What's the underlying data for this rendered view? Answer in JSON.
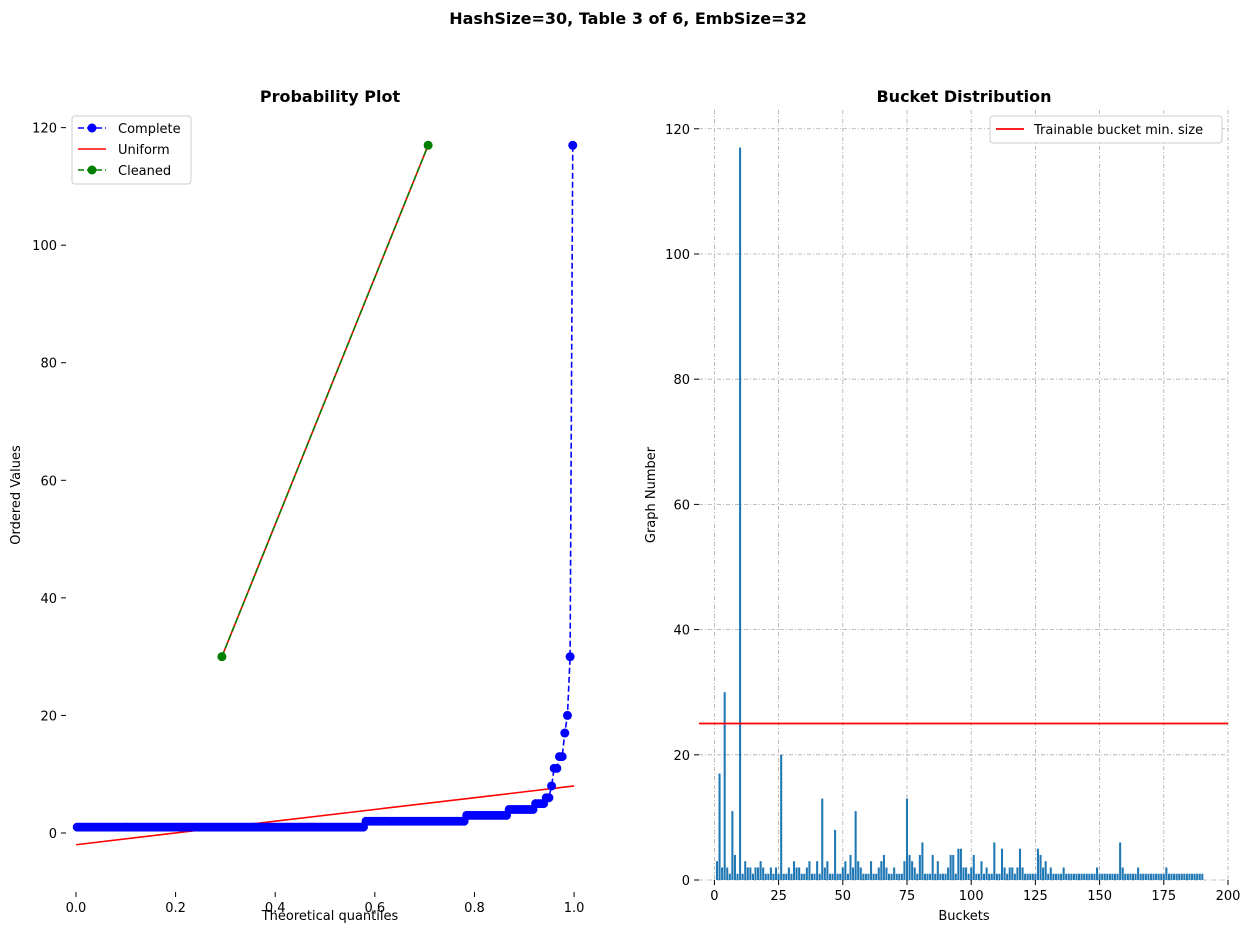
{
  "suptitle": "HashSize=30, Table 3 of 6, EmbSize=32",
  "chart_data": [
    {
      "type": "line",
      "title": "Probability Plot",
      "xlabel": "Theoretical quantiles",
      "ylabel": "Ordered Values",
      "xlim": [
        -0.02,
        1.04
      ],
      "ylim": [
        -8,
        123
      ],
      "xticks": [
        0.0,
        0.2,
        0.4,
        0.6,
        0.8,
        1.0
      ],
      "xtick_labels": [
        "0.0",
        "0.2",
        "0.4",
        "0.6",
        "0.8",
        "1.0"
      ],
      "yticks": [
        0,
        20,
        40,
        60,
        80,
        100,
        120
      ],
      "ytick_labels": [
        "0",
        "20",
        "40",
        "60",
        "80",
        "100",
        "120"
      ],
      "grid": false,
      "legend_position": "top-left",
      "legend": [
        "Complete",
        "Uniform",
        "Cleaned"
      ],
      "series": [
        {
          "name": "Complete",
          "style": "dashed-markers",
          "color": "#0000ff",
          "sorted_values": [
            1,
            1,
            1,
            1,
            1,
            1,
            1,
            1,
            1,
            1,
            1,
            1,
            1,
            1,
            1,
            1,
            1,
            1,
            1,
            1,
            1,
            1,
            1,
            1,
            1,
            1,
            1,
            1,
            1,
            1,
            1,
            1,
            1,
            1,
            1,
            1,
            1,
            1,
            1,
            1,
            1,
            1,
            1,
            1,
            1,
            1,
            1,
            1,
            1,
            1,
            1,
            1,
            1,
            1,
            1,
            1,
            1,
            1,
            1,
            1,
            1,
            1,
            1,
            1,
            1,
            1,
            1,
            1,
            1,
            1,
            1,
            1,
            1,
            1,
            1,
            1,
            1,
            1,
            1,
            1,
            1,
            1,
            1,
            1,
            1,
            1,
            1,
            1,
            1,
            1,
            1,
            1,
            1,
            1,
            1,
            1,
            1,
            1,
            1,
            1,
            1,
            1,
            1,
            1,
            1,
            1,
            1,
            1,
            1,
            2,
            2,
            2,
            2,
            2,
            2,
            2,
            2,
            2,
            2,
            2,
            2,
            2,
            2,
            2,
            2,
            2,
            2,
            2,
            2,
            2,
            2,
            2,
            2,
            2,
            2,
            2,
            2,
            2,
            2,
            2,
            2,
            2,
            2,
            2,
            2,
            2,
            2,
            3,
            3,
            3,
            3,
            3,
            3,
            3,
            3,
            3,
            3,
            3,
            3,
            3,
            3,
            3,
            3,
            4,
            4,
            4,
            4,
            4,
            4,
            4,
            4,
            4,
            4,
            5,
            5,
            5,
            5,
            6,
            6,
            8,
            11,
            11,
            13,
            13,
            17,
            20,
            30,
            117
          ]
        },
        {
          "name": "Uniform",
          "style": "solid",
          "color": "#ff0000",
          "segments": [
            {
              "x": [
                0.0,
                1.0
              ],
              "y": [
                -2.0,
                8.0
              ]
            },
            {
              "x": [
                0.293,
                0.707
              ],
              "y": [
                30.0,
                117.0
              ]
            }
          ]
        },
        {
          "name": "Cleaned",
          "style": "dashed-markers",
          "color": "#008000",
          "x": [
            0.293,
            0.707
          ],
          "y": [
            30,
            117
          ]
        }
      ]
    },
    {
      "type": "bar",
      "title": "Bucket Distribution",
      "xlabel": "Buckets",
      "ylabel": "Graph Number",
      "xlim": [
        -6,
        200
      ],
      "ylim": [
        0,
        123
      ],
      "xticks": [
        0,
        25,
        50,
        75,
        100,
        125,
        150,
        175,
        200
      ],
      "xtick_labels": [
        "0",
        "25",
        "50",
        "75",
        "100",
        "125",
        "150",
        "175",
        "200"
      ],
      "yticks": [
        0,
        20,
        40,
        60,
        80,
        100,
        120
      ],
      "ytick_labels": [
        "0",
        "20",
        "40",
        "60",
        "80",
        "100",
        "120"
      ],
      "grid": true,
      "legend_position": "top-right",
      "bar_color": "#1f77b4",
      "hline": {
        "name": "Trainable bucket min. size",
        "value": 25,
        "color": "#ff0000"
      },
      "x_start": 0,
      "values": [
        0,
        3,
        17,
        2,
        30,
        2,
        1,
        11,
        4,
        1,
        117,
        1,
        3,
        2,
        2,
        1,
        2,
        2,
        3,
        2,
        1,
        1,
        2,
        1,
        2,
        1,
        20,
        1,
        1,
        2,
        1,
        3,
        2,
        2,
        1,
        1,
        2,
        3,
        1,
        1,
        3,
        1,
        13,
        2,
        3,
        1,
        1,
        8,
        1,
        1,
        2,
        3,
        1,
        4,
        2,
        11,
        3,
        2,
        1,
        1,
        1,
        3,
        1,
        1,
        2,
        3,
        4,
        2,
        1,
        1,
        2,
        1,
        1,
        1,
        3,
        13,
        4,
        3,
        2,
        1,
        4,
        6,
        1,
        1,
        1,
        4,
        1,
        3,
        1,
        1,
        1,
        2,
        4,
        4,
        1,
        5,
        5,
        2,
        2,
        1,
        2,
        4,
        1,
        1,
        3,
        1,
        2,
        1,
        1,
        6,
        1,
        1,
        5,
        2,
        1,
        2,
        2,
        1,
        2,
        5,
        2,
        1,
        1,
        1,
        1,
        1,
        5,
        4,
        2,
        3,
        1,
        2,
        1,
        1,
        1,
        1,
        2,
        1,
        1,
        1,
        1,
        1,
        1,
        1,
        1,
        1,
        1,
        1,
        1,
        2,
        1,
        1,
        1,
        1,
        1,
        1,
        1,
        1,
        6,
        2,
        1,
        1,
        1,
        1,
        1,
        2,
        1,
        1,
        1,
        1,
        1,
        1,
        1,
        1,
        1,
        1,
        2,
        1,
        1,
        1,
        1,
        1,
        1,
        1,
        1,
        1,
        1,
        1,
        1,
        1,
        1
      ]
    }
  ]
}
